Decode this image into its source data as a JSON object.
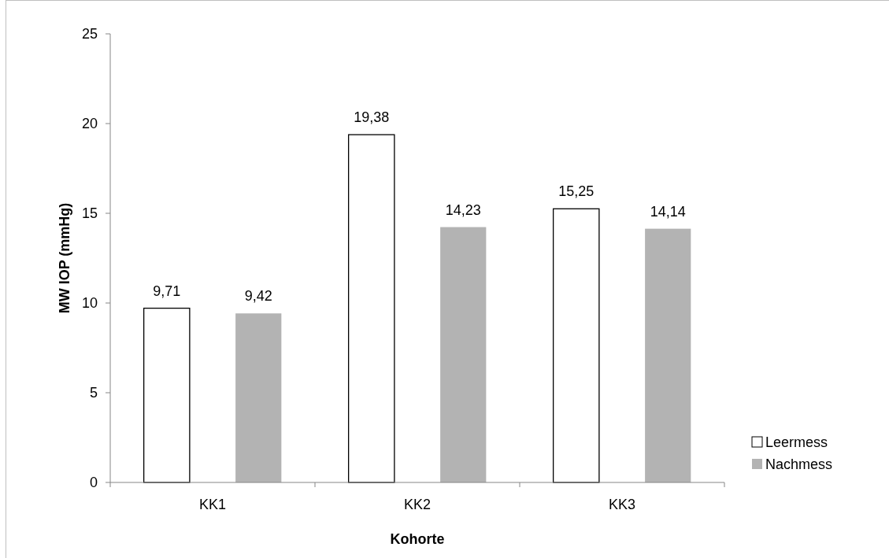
{
  "chart_data": {
    "type": "bar",
    "xlabel": "Kohorte",
    "ylabel": "MW IOP (mmHg)",
    "categories": [
      "KK1",
      "KK2",
      "KK3"
    ],
    "series": [
      {
        "name": "Leermess",
        "color": "#ffffff",
        "values": [
          9.71,
          19.38,
          15.25
        ],
        "value_labels": [
          "9,71",
          "19,38",
          "15,25"
        ]
      },
      {
        "name": "Nachmess",
        "color": "#b3b3b3",
        "values": [
          9.42,
          14.23,
          14.14
        ],
        "value_labels": [
          "9,42",
          "14,23",
          "14,14"
        ]
      }
    ],
    "ylim": [
      0,
      25
    ],
    "yticks": [
      0,
      5,
      10,
      15,
      20,
      25
    ],
    "legend": "right",
    "grid": false
  }
}
